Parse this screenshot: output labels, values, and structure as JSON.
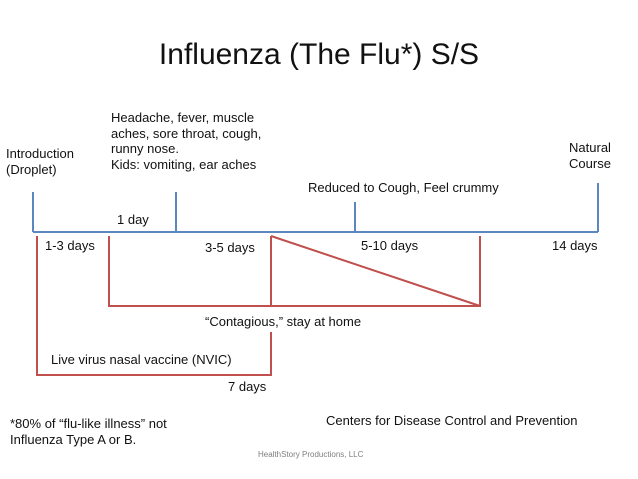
{
  "title": "Influenza (The Flu*) S/S",
  "labels": {
    "introduction": "Introduction\n(Droplet)",
    "symptoms": "Headache, fever, muscle\naches, sore throat, cough,\nrunny nose.\nKids: vomiting, ear aches",
    "natural_course": "Natural\nCourse",
    "reduced": "Reduced to Cough, Feel crummy",
    "one_day": "1 day",
    "one_three_days": "1-3 days",
    "three_five_days": "3-5 days",
    "five_ten_days": "5-10 days",
    "fourteen_days": "14 days",
    "contagious": "“Contagious,” stay at home",
    "nvic": "Live virus nasal vaccine (NVIC)",
    "seven_days": "7 days",
    "footnote": "*80% of “flu-like illness” not\nInfluenza Type A or B.",
    "cdc": "Centers for Disease Control and Prevention",
    "credit": "HealthStory Productions, LLC"
  },
  "colors": {
    "timeline": "#5b86c0",
    "bracket": "#c0504d",
    "text": "#111111"
  }
}
